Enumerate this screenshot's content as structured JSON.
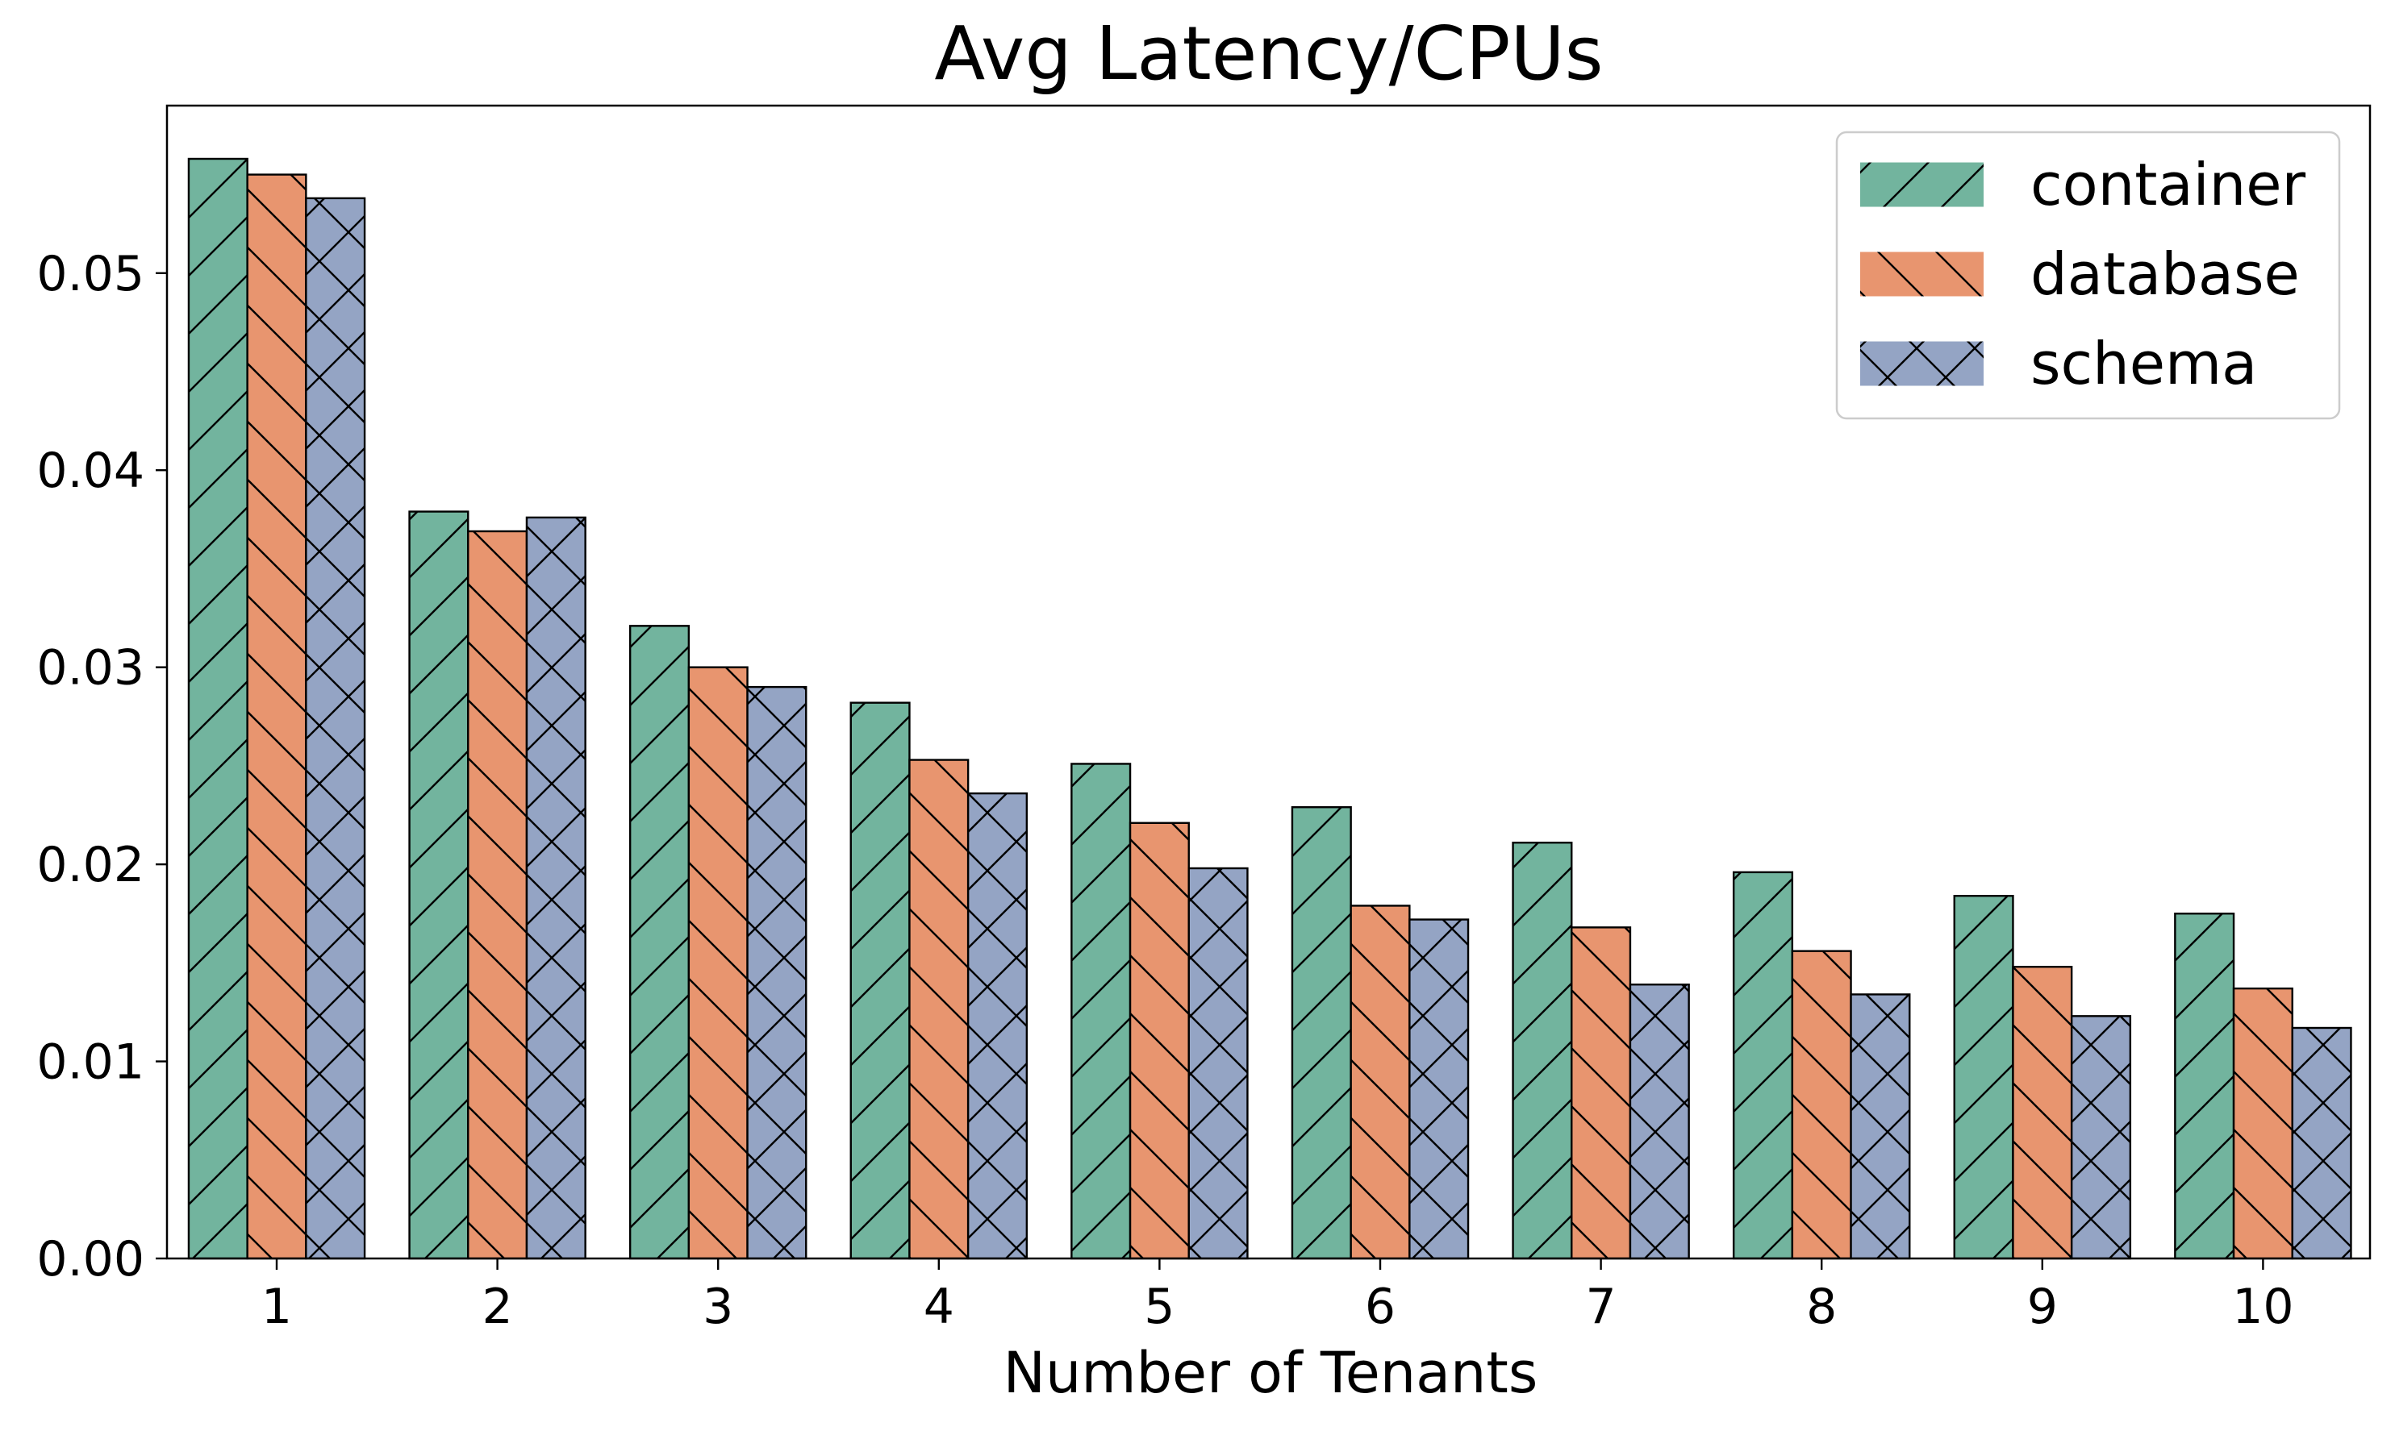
{
  "chart_data": {
    "type": "bar",
    "title": "Avg Latency/CPUs",
    "xlabel": "Number of Tenants",
    "ylabel": "",
    "categories": [
      "1",
      "2",
      "3",
      "4",
      "5",
      "6",
      "7",
      "8",
      "9",
      "10"
    ],
    "yticks": [
      "0.00",
      "0.01",
      "0.02",
      "0.03",
      "0.04",
      "0.05"
    ],
    "ylim": [
      0,
      0.0585
    ],
    "grid": false,
    "legend_position": "top-right",
    "series": [
      {
        "name": "container",
        "color": "#72b49e",
        "hatch": "forward-slash",
        "values": [
          0.0558,
          0.0379,
          0.0321,
          0.0282,
          0.0251,
          0.0229,
          0.0211,
          0.0196,
          0.0184,
          0.0175
        ]
      },
      {
        "name": "database",
        "color": "#e8956f",
        "hatch": "back-slash",
        "values": [
          0.055,
          0.0369,
          0.03,
          0.0253,
          0.0221,
          0.0179,
          0.0168,
          0.0156,
          0.0148,
          0.0137
        ]
      },
      {
        "name": "schema",
        "color": "#94a4c4",
        "hatch": "cross",
        "values": [
          0.0538,
          0.0376,
          0.029,
          0.0236,
          0.0198,
          0.0172,
          0.0139,
          0.0134,
          0.0123,
          0.0117
        ]
      }
    ]
  }
}
